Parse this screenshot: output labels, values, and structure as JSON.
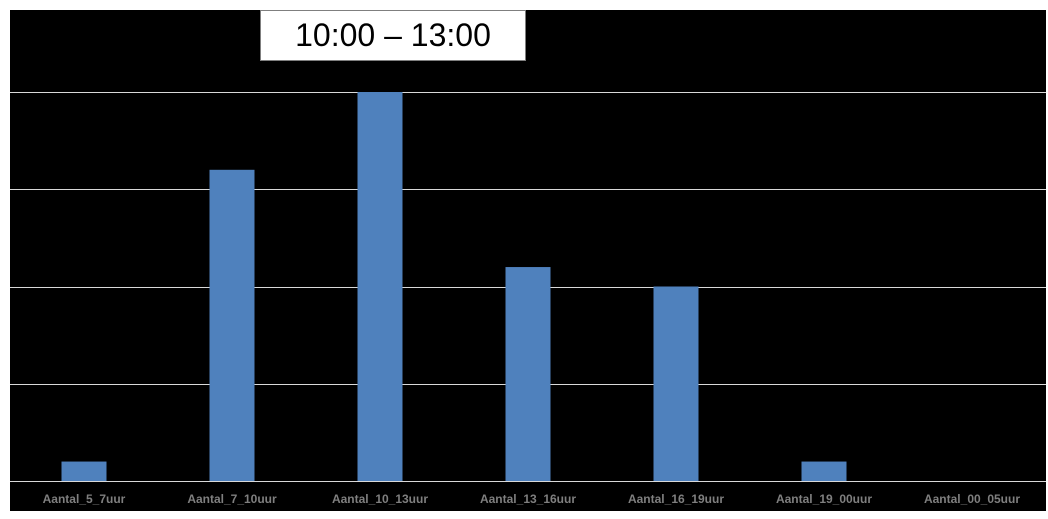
{
  "callout": {
    "text": "10:00 – 13:00"
  },
  "colors": {
    "background": "#000000",
    "bar": "#4f81bd",
    "grid": "#d9d9d9",
    "tick_label": "#7f7f7f"
  },
  "chart_data": {
    "type": "bar",
    "categories": [
      "Aantal_5_7uur",
      "Aantal_7_10uur",
      "Aantal_10_13uur",
      "Aantal_13_16uur",
      "Aantal_16_19uur",
      "Aantal_19_00uur",
      "Aantal_00_05uur"
    ],
    "values": [
      1,
      16,
      20,
      11,
      10,
      1,
      0
    ],
    "ylim": [
      0,
      20
    ],
    "gridlines": [
      0,
      5,
      10,
      15,
      20
    ],
    "grid": true,
    "legend": "none",
    "title": "",
    "xlabel": "",
    "ylabel": ""
  }
}
